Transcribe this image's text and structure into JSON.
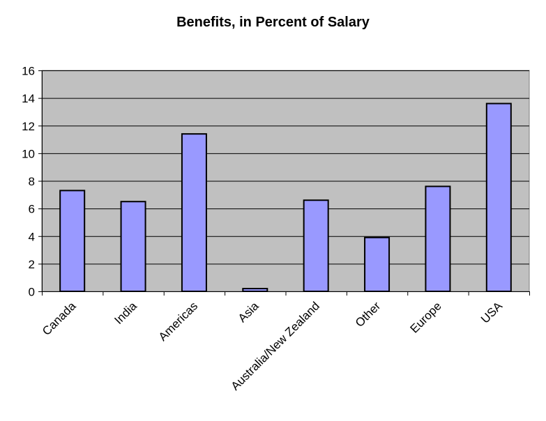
{
  "chart_data": {
    "type": "bar",
    "title": "Benefits, in Percent of Salary",
    "xlabel": "",
    "ylabel": "",
    "categories": [
      "Canada",
      "India",
      "Americas",
      "Asia",
      "Australia/New Zealand",
      "Other",
      "Europe",
      "USA"
    ],
    "values": [
      7.3,
      6.5,
      11.4,
      0.2,
      6.6,
      3.9,
      7.6,
      13.6
    ],
    "ylim": [
      0,
      16
    ],
    "yticks": [
      "0",
      "2",
      "4",
      "6",
      "8",
      "10",
      "12",
      "14",
      "16"
    ],
    "grid": "horizontal",
    "legend": "none",
    "colors": {
      "bar": "#9999ff",
      "plot_background": "#c0c0c0",
      "bar_outline": "#000000",
      "gridline": "#000000"
    }
  }
}
